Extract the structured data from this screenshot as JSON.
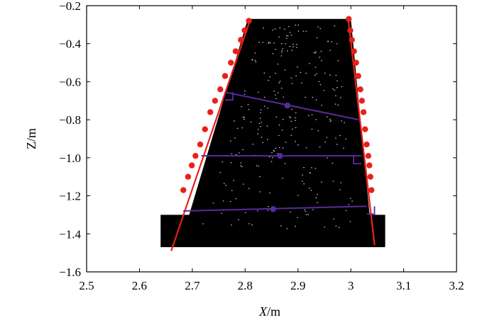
{
  "chart_data": {
    "type": "scatter",
    "xlabel": {
      "italic": "X",
      "unit": "/m"
    },
    "ylabel": "Z/m",
    "xlim": [
      2.5,
      3.2
    ],
    "ylim": [
      -1.6,
      -0.2
    ],
    "xticks": [
      "2.5",
      "2.6",
      "2.7",
      "2.8",
      "2.9",
      "3",
      "3.1",
      "3.2"
    ],
    "yticks": [
      "−0.2",
      "−0.4",
      "−0.6",
      "−0.8",
      "−1.0",
      "−1.2",
      "−1.4",
      "−1.6"
    ],
    "grid": false,
    "colors": {
      "cloud": "#000000",
      "edge": "#e8201a",
      "section": "#5a2a9e"
    },
    "point_cloud": {
      "upper_polygon": [
        [
          2.805,
          -0.27
        ],
        [
          3.0,
          -0.27
        ],
        [
          3.04,
          -1.43
        ],
        [
          2.68,
          -1.43
        ]
      ],
      "base_block": {
        "x": [
          2.64,
          3.065
        ],
        "y": [
          -1.3,
          -1.47
        ]
      }
    },
    "edge_lines": [
      {
        "x": [
          2.81,
          2.66
        ],
        "y": [
          -0.27,
          -1.49
        ]
      },
      {
        "x": [
          2.995,
          3.045
        ],
        "y": [
          -0.27,
          -1.46
        ]
      }
    ],
    "edge_points": [
      {
        "x": [
          2.807,
          2.799,
          2.792,
          2.782,
          2.773,
          2.762,
          2.753,
          2.743,
          2.734,
          2.724,
          2.715,
          2.706,
          2.699,
          2.692,
          2.683
        ],
        "y": [
          -0.28,
          -0.33,
          -0.38,
          -0.44,
          -0.5,
          -0.57,
          -0.64,
          -0.7,
          -0.76,
          -0.85,
          -0.93,
          -0.99,
          -1.04,
          -1.1,
          -1.17
        ]
      },
      {
        "x": [
          2.996,
          2.999,
          3.002,
          3.006,
          3.01,
          3.014,
          3.018,
          3.021,
          3.024,
          3.027,
          3.03,
          3.033,
          3.035,
          3.037,
          3.039
        ],
        "y": [
          -0.27,
          -0.33,
          -0.38,
          -0.44,
          -0.5,
          -0.57,
          -0.64,
          -0.7,
          -0.76,
          -0.85,
          -0.93,
          -0.99,
          -1.04,
          -1.1,
          -1.17
        ]
      }
    ],
    "section_lines": [
      {
        "x": [
          2.762,
          3.015
        ],
        "y": [
          -0.655,
          -0.8
        ],
        "mid": [
          2.88,
          -0.725
        ]
      },
      {
        "x": [
          2.717,
          3.02
        ],
        "y": [
          -0.99,
          -0.99
        ],
        "mid": [
          2.866,
          -0.99
        ]
      },
      {
        "x": [
          2.683,
          3.03
        ],
        "y": [
          -1.28,
          -1.255
        ],
        "mid": [
          2.853,
          -1.27
        ]
      }
    ],
    "right_angle_markers": [
      {
        "x": 2.762,
        "y": -0.655,
        "side": "right-down"
      },
      {
        "x": 3.02,
        "y": -0.99,
        "side": "left-down"
      },
      {
        "x": 3.03,
        "y": -1.255,
        "side": "right-down"
      }
    ]
  }
}
